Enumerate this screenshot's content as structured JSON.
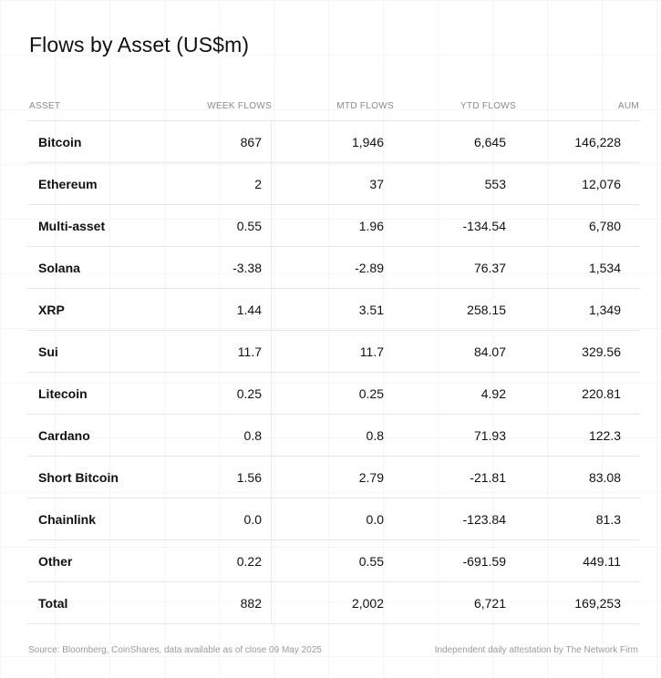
{
  "title": "Flows by Asset (US$m)",
  "columns": {
    "asset": "ASSET",
    "week": "WEEK FLOWS",
    "mtd": "MTD FLOWS",
    "ytd": "YTD FLOWS",
    "aum": "AUM"
  },
  "rows": [
    {
      "asset": "Bitcoin",
      "week": "867",
      "mtd": "1,946",
      "ytd": "6,645",
      "aum": "146,228"
    },
    {
      "asset": "Ethereum",
      "week": "2",
      "mtd": "37",
      "ytd": "553",
      "aum": "12,076"
    },
    {
      "asset": "Multi-asset",
      "week": "0.55",
      "mtd": "1.96",
      "ytd": "-134.54",
      "aum": "6,780"
    },
    {
      "asset": "Solana",
      "week": "-3.38",
      "mtd": "-2.89",
      "ytd": "76.37",
      "aum": "1,534"
    },
    {
      "asset": "XRP",
      "week": "1.44",
      "mtd": "3.51",
      "ytd": "258.15",
      "aum": "1,349"
    },
    {
      "asset": "Sui",
      "week": "11.7",
      "mtd": "11.7",
      "ytd": "84.07",
      "aum": "329.56"
    },
    {
      "asset": "Litecoin",
      "week": "0.25",
      "mtd": "0.25",
      "ytd": "4.92",
      "aum": "220.81"
    },
    {
      "asset": "Cardano",
      "week": "0.8",
      "mtd": "0.8",
      "ytd": "71.93",
      "aum": "122.3"
    },
    {
      "asset": "Short Bitcoin",
      "week": "1.56",
      "mtd": "2.79",
      "ytd": "-21.81",
      "aum": "83.08"
    },
    {
      "asset": "Chainlink",
      "week": "0.0",
      "mtd": "0.0",
      "ytd": "-123.84",
      "aum": "81.3"
    },
    {
      "asset": "Other",
      "week": "0.22",
      "mtd": "0.55",
      "ytd": "-691.59",
      "aum": "449.11"
    },
    {
      "asset": "Total",
      "week": "882",
      "mtd": "2,002",
      "ytd": "6,721",
      "aum": "169,253"
    }
  ],
  "footer": {
    "source": "Source: Bloomberg, CoinShares, data available as of close 09 May 2025",
    "attestation": "Independent daily attestation by The Network Firm"
  }
}
